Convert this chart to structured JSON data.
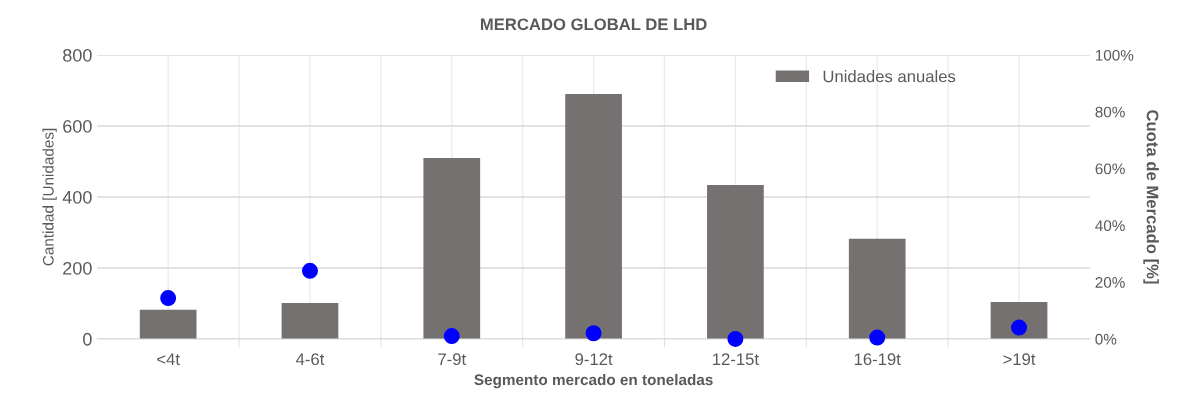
{
  "chart_data": {
    "type": "bar",
    "title": "MERCADO GLOBAL DE LHD",
    "xlabel": "Segmento mercado en toneladas",
    "ylabel": "Cantidad [Unidades]",
    "y2label": "Cuota de Mercado [%]",
    "categories": [
      "<4t",
      "4-6t",
      "7-9t",
      "9-12t",
      "12-15t",
      "16-19t",
      ">19t"
    ],
    "series": [
      {
        "name": "Unidades anuales",
        "color": "#767171",
        "values": [
          82,
          101,
          510,
          690,
          434,
          282,
          104
        ]
      },
      {
        "type": "scatter",
        "marker": "circle",
        "axis": "y2",
        "color": "#0000ff",
        "values": [
          14.4,
          24,
          1,
          2,
          0,
          0.5,
          4
        ]
      }
    ],
    "ylim": [
      0,
      800
    ],
    "yticks": [
      0,
      200,
      400,
      600,
      800
    ],
    "y2lim": [
      0,
      100
    ],
    "y2ticks": [
      {
        "value": 0,
        "label": "0%"
      },
      {
        "value": 20,
        "label": "20%"
      },
      {
        "value": 40,
        "label": "40%"
      },
      {
        "value": 60,
        "label": "60%"
      },
      {
        "value": 80,
        "label": "80%"
      },
      {
        "value": 100,
        "label": "100%"
      }
    ],
    "grid": true,
    "legend": "top right"
  }
}
